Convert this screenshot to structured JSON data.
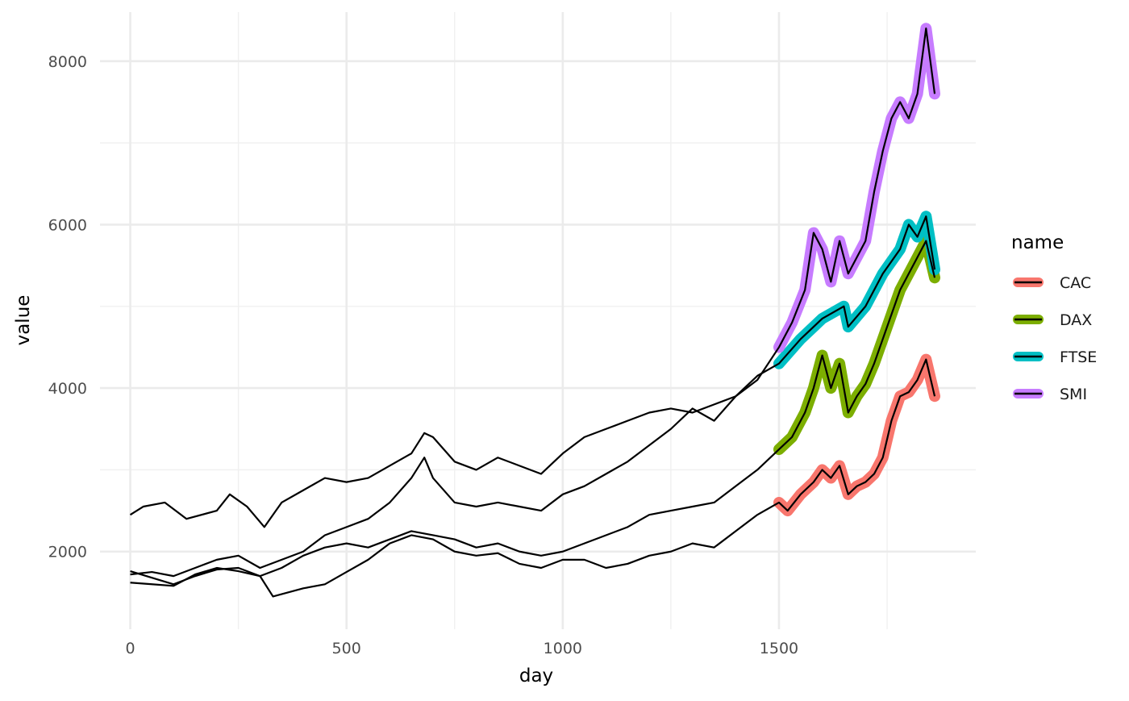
{
  "chart_data": {
    "type": "line",
    "xlabel": "day",
    "ylabel": "value",
    "xlim": [
      -70,
      1955
    ],
    "ylim": [
      1050,
      8600
    ],
    "x_ticks": [
      0,
      500,
      1000,
      1500
    ],
    "x_tick_labels": [
      "0",
      "500",
      "1000",
      "1500"
    ],
    "x_minor_ticks": [
      250,
      750,
      1250,
      1750
    ],
    "y_ticks": [
      2000,
      4000,
      6000,
      8000
    ],
    "y_tick_labels": [
      "2000",
      "4000",
      "6000",
      "8000"
    ],
    "y_minor_ticks": [
      3000,
      5000,
      7000
    ],
    "grid": true,
    "legend": {
      "title": "name",
      "position": "right",
      "entries": [
        {
          "label": "CAC",
          "color": "#F8766D"
        },
        {
          "label": "DAX",
          "color": "#7CAE00"
        },
        {
          "label": "FTSE",
          "color": "#00BFC4"
        },
        {
          "label": "SMI",
          "color": "#C77CFF"
        }
      ]
    },
    "highlight_range": [
      1500,
      1860
    ],
    "series": [
      {
        "name": "CAC",
        "color": "#F8766D",
        "points": [
          [
            0,
            1760
          ],
          [
            50,
            1680
          ],
          [
            100,
            1600
          ],
          [
            150,
            1700
          ],
          [
            200,
            1780
          ],
          [
            250,
            1800
          ],
          [
            300,
            1700
          ],
          [
            330,
            1450
          ],
          [
            400,
            1550
          ],
          [
            450,
            1600
          ],
          [
            500,
            1750
          ],
          [
            550,
            1900
          ],
          [
            600,
            2100
          ],
          [
            650,
            2200
          ],
          [
            700,
            2150
          ],
          [
            750,
            2000
          ],
          [
            800,
            1950
          ],
          [
            850,
            1980
          ],
          [
            900,
            1850
          ],
          [
            950,
            1800
          ],
          [
            1000,
            1900
          ],
          [
            1050,
            1900
          ],
          [
            1100,
            1800
          ],
          [
            1150,
            1850
          ],
          [
            1200,
            1950
          ],
          [
            1250,
            2000
          ],
          [
            1300,
            2100
          ],
          [
            1350,
            2050
          ],
          [
            1400,
            2250
          ],
          [
            1450,
            2450
          ],
          [
            1500,
            2600
          ],
          [
            1520,
            2500
          ],
          [
            1550,
            2700
          ],
          [
            1580,
            2850
          ],
          [
            1600,
            3000
          ],
          [
            1620,
            2900
          ],
          [
            1640,
            3050
          ],
          [
            1660,
            2700
          ],
          [
            1680,
            2800
          ],
          [
            1700,
            2850
          ],
          [
            1720,
            2950
          ],
          [
            1740,
            3150
          ],
          [
            1760,
            3600
          ],
          [
            1780,
            3900
          ],
          [
            1800,
            3950
          ],
          [
            1820,
            4100
          ],
          [
            1840,
            4350
          ],
          [
            1860,
            3900
          ]
        ]
      },
      {
        "name": "DAX",
        "color": "#7CAE00",
        "points": [
          [
            0,
            1620
          ],
          [
            50,
            1600
          ],
          [
            100,
            1580
          ],
          [
            150,
            1720
          ],
          [
            200,
            1800
          ],
          [
            250,
            1760
          ],
          [
            300,
            1700
          ],
          [
            350,
            1800
          ],
          [
            400,
            1950
          ],
          [
            450,
            2050
          ],
          [
            500,
            2100
          ],
          [
            550,
            2050
          ],
          [
            600,
            2150
          ],
          [
            650,
            2250
          ],
          [
            700,
            2200
          ],
          [
            750,
            2150
          ],
          [
            800,
            2050
          ],
          [
            850,
            2100
          ],
          [
            900,
            2000
          ],
          [
            950,
            1950
          ],
          [
            1000,
            2000
          ],
          [
            1050,
            2100
          ],
          [
            1100,
            2200
          ],
          [
            1150,
            2300
          ],
          [
            1200,
            2450
          ],
          [
            1250,
            2500
          ],
          [
            1300,
            2550
          ],
          [
            1350,
            2600
          ],
          [
            1400,
            2800
          ],
          [
            1450,
            3000
          ],
          [
            1500,
            3250
          ],
          [
            1530,
            3400
          ],
          [
            1560,
            3700
          ],
          [
            1580,
            4000
          ],
          [
            1600,
            4400
          ],
          [
            1620,
            4000
          ],
          [
            1640,
            4300
          ],
          [
            1660,
            3700
          ],
          [
            1680,
            3900
          ],
          [
            1700,
            4050
          ],
          [
            1720,
            4300
          ],
          [
            1740,
            4600
          ],
          [
            1760,
            4900
          ],
          [
            1780,
            5200
          ],
          [
            1800,
            5400
          ],
          [
            1820,
            5600
          ],
          [
            1840,
            5800
          ],
          [
            1860,
            5350
          ]
        ]
      },
      {
        "name": "FTSE",
        "color": "#00BFC4",
        "points": [
          [
            0,
            2450
          ],
          [
            30,
            2550
          ],
          [
            80,
            2600
          ],
          [
            130,
            2400
          ],
          [
            200,
            2500
          ],
          [
            230,
            2700
          ],
          [
            270,
            2550
          ],
          [
            310,
            2300
          ],
          [
            350,
            2600
          ],
          [
            400,
            2750
          ],
          [
            450,
            2900
          ],
          [
            500,
            2850
          ],
          [
            550,
            2900
          ],
          [
            600,
            3050
          ],
          [
            650,
            3200
          ],
          [
            680,
            3450
          ],
          [
            700,
            3400
          ],
          [
            750,
            3100
          ],
          [
            800,
            3000
          ],
          [
            850,
            3150
          ],
          [
            900,
            3050
          ],
          [
            950,
            2950
          ],
          [
            1000,
            3200
          ],
          [
            1050,
            3400
          ],
          [
            1100,
            3500
          ],
          [
            1150,
            3600
          ],
          [
            1200,
            3700
          ],
          [
            1250,
            3750
          ],
          [
            1300,
            3700
          ],
          [
            1350,
            3800
          ],
          [
            1400,
            3900
          ],
          [
            1450,
            4150
          ],
          [
            1500,
            4300
          ],
          [
            1550,
            4600
          ],
          [
            1600,
            4850
          ],
          [
            1650,
            5000
          ],
          [
            1660,
            4750
          ],
          [
            1700,
            5000
          ],
          [
            1740,
            5400
          ],
          [
            1780,
            5700
          ],
          [
            1800,
            6000
          ],
          [
            1820,
            5850
          ],
          [
            1840,
            6100
          ],
          [
            1860,
            5450
          ]
        ]
      },
      {
        "name": "SMI",
        "color": "#C77CFF",
        "points": [
          [
            0,
            1720
          ],
          [
            50,
            1750
          ],
          [
            100,
            1700
          ],
          [
            150,
            1800
          ],
          [
            200,
            1900
          ],
          [
            250,
            1950
          ],
          [
            300,
            1800
          ],
          [
            350,
            1900
          ],
          [
            400,
            2000
          ],
          [
            450,
            2200
          ],
          [
            500,
            2300
          ],
          [
            550,
            2400
          ],
          [
            600,
            2600
          ],
          [
            650,
            2900
          ],
          [
            680,
            3150
          ],
          [
            700,
            2900
          ],
          [
            750,
            2600
          ],
          [
            800,
            2550
          ],
          [
            850,
            2600
          ],
          [
            900,
            2550
          ],
          [
            950,
            2500
          ],
          [
            1000,
            2700
          ],
          [
            1050,
            2800
          ],
          [
            1100,
            2950
          ],
          [
            1150,
            3100
          ],
          [
            1200,
            3300
          ],
          [
            1250,
            3500
          ],
          [
            1300,
            3750
          ],
          [
            1350,
            3600
          ],
          [
            1400,
            3900
          ],
          [
            1450,
            4100
          ],
          [
            1500,
            4500
          ],
          [
            1530,
            4800
          ],
          [
            1560,
            5200
          ],
          [
            1580,
            5900
          ],
          [
            1600,
            5700
          ],
          [
            1620,
            5300
          ],
          [
            1640,
            5800
          ],
          [
            1660,
            5400
          ],
          [
            1700,
            5800
          ],
          [
            1720,
            6400
          ],
          [
            1740,
            6900
          ],
          [
            1760,
            7300
          ],
          [
            1780,
            7500
          ],
          [
            1800,
            7300
          ],
          [
            1820,
            7600
          ],
          [
            1840,
            8400
          ],
          [
            1860,
            7600
          ]
        ]
      }
    ]
  }
}
